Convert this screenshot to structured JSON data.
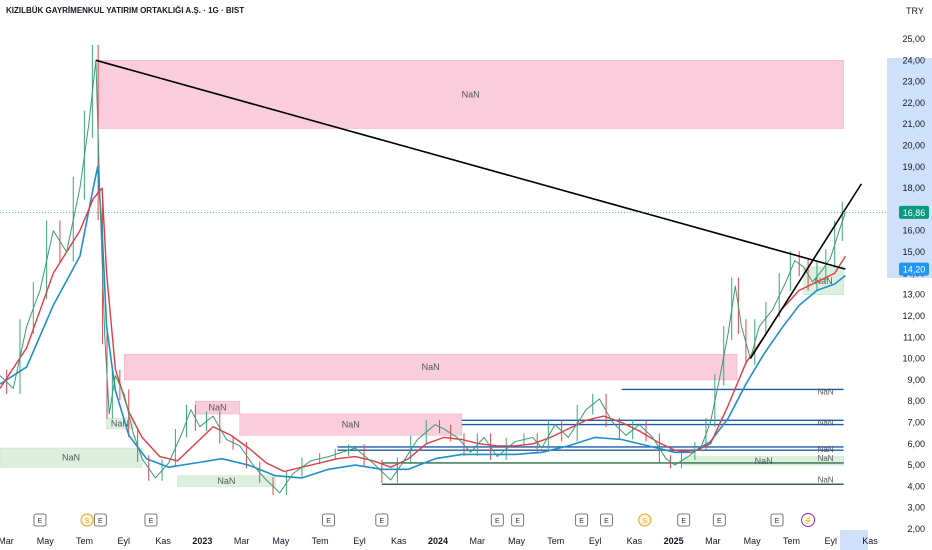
{
  "header": {
    "title": "KIZILBÜK GAYRİMENKUL YATIRIM ORTAKLIĞI A.Ş. · 1G · BIST",
    "currency": "TRY"
  },
  "colors": {
    "supply": "#f9c5d5",
    "demand": "#d8eedb",
    "blue_line": "#1e5aa8",
    "dark_green_line": "#2b6b46",
    "red_ma": "#e03b46",
    "blue_ma": "#1f8fc9",
    "trendline": "#000000",
    "price_badge": "#089981",
    "level_badge": "#2196f3",
    "axis_highlight": "#cfe0fa"
  },
  "chart_data": {
    "type": "line",
    "price_axis": {
      "ticks": [
        "25,00",
        "24,00",
        "23,00",
        "22,00",
        "21,00",
        "20,00",
        "19,00",
        "18,00",
        "17,00",
        "16,00",
        "15,00",
        "14,00",
        "13,00",
        "12,00",
        "11,00",
        "10,00",
        "9,00",
        "8,00",
        "7,00",
        "6,00",
        "5,00",
        "4,00",
        "3,00",
        "2,00"
      ],
      "ylim": [
        2.0,
        25.0
      ],
      "badges": [
        {
          "name": "last-price",
          "label": "16,86",
          "value": 16.86
        },
        {
          "name": "level",
          "label": "14,20",
          "value": 14.2
        }
      ]
    },
    "time_axis": {
      "ticks": [
        "Mar",
        "May",
        "Tem",
        "Eyl",
        "Kas",
        "2023",
        "Mar",
        "May",
        "Tem",
        "Eyl",
        "Kas",
        "2024",
        "Mar",
        "May",
        "Tem",
        "Eyl",
        "Kas",
        "2025",
        "Mar",
        "May",
        "Tem",
        "Eyl",
        "Kas"
      ],
      "bold": [
        "2023",
        "2024",
        "2025"
      ]
    },
    "zones": [
      {
        "kind": "supply",
        "label": "NaN",
        "top": 24.0,
        "bottom": 20.8,
        "start": 0.11,
        "end": 0.95
      },
      {
        "kind": "supply",
        "label": "NaN",
        "top": 10.2,
        "bottom": 9.0,
        "start": 0.14,
        "end": 0.83
      },
      {
        "kind": "supply",
        "label": "NaN",
        "top": 8.0,
        "bottom": 7.4,
        "start": 0.22,
        "end": 0.27
      },
      {
        "kind": "supply",
        "label": "NaN",
        "top": 7.4,
        "bottom": 6.4,
        "start": 0.27,
        "end": 0.52
      },
      {
        "kind": "demand",
        "label": "NaN",
        "top": 5.8,
        "bottom": 4.9,
        "start": 0.0,
        "end": 0.16
      },
      {
        "kind": "demand",
        "label": "NaN",
        "top": 7.2,
        "bottom": 6.7,
        "start": 0.12,
        "end": 0.15
      },
      {
        "kind": "demand",
        "label": "NaN",
        "top": 4.5,
        "bottom": 4.0,
        "start": 0.2,
        "end": 0.31
      },
      {
        "kind": "demand",
        "label": "NaN",
        "top": 5.4,
        "bottom": 5.0,
        "start": 0.77,
        "end": 0.95
      },
      {
        "kind": "demand",
        "label": "NaN",
        "top": 14.3,
        "bottom": 13.0,
        "start": 0.905,
        "end": 0.95
      }
    ],
    "hlines": [
      {
        "color": "blue",
        "value": 8.55,
        "start": 0.7,
        "end": 0.95,
        "label": "NaN"
      },
      {
        "color": "blue",
        "value": 7.1,
        "start": 0.52,
        "end": 0.95,
        "label": "NaN"
      },
      {
        "color": "blue",
        "value": 6.9,
        "start": 0.52,
        "end": 0.95,
        "label": ""
      },
      {
        "color": "blue",
        "value": 5.85,
        "start": 0.38,
        "end": 0.95,
        "label": "NaN"
      },
      {
        "color": "blue",
        "value": 5.7,
        "start": 0.38,
        "end": 0.95,
        "label": ""
      },
      {
        "color": "green",
        "value": 5.1,
        "start": 0.43,
        "end": 0.95,
        "label": "NaN"
      },
      {
        "color": "green",
        "value": 4.1,
        "start": 0.43,
        "end": 0.95,
        "label": "NaN"
      }
    ],
    "zone_labels_extra": [
      "NaN",
      "NaN",
      "NaN",
      "NaN"
    ],
    "price_series": [
      [
        0.0,
        9.2
      ],
      [
        0.015,
        8.6
      ],
      [
        0.03,
        11.5
      ],
      [
        0.045,
        13.2
      ],
      [
        0.06,
        16.0
      ],
      [
        0.075,
        15.0
      ],
      [
        0.09,
        18.0
      ],
      [
        0.1,
        21.0
      ],
      [
        0.108,
        24.0
      ],
      [
        0.113,
        17.0
      ],
      [
        0.118,
        11.0
      ],
      [
        0.123,
        7.4
      ],
      [
        0.13,
        9.2
      ],
      [
        0.14,
        8.3
      ],
      [
        0.15,
        6.5
      ],
      [
        0.16,
        5.3
      ],
      [
        0.175,
        4.4
      ],
      [
        0.19,
        5.1
      ],
      [
        0.205,
        6.5
      ],
      [
        0.215,
        7.6
      ],
      [
        0.225,
        6.8
      ],
      [
        0.24,
        7.3
      ],
      [
        0.255,
        6.2
      ],
      [
        0.27,
        5.9
      ],
      [
        0.285,
        5.0
      ],
      [
        0.3,
        4.3
      ],
      [
        0.315,
        3.7
      ],
      [
        0.33,
        4.6
      ],
      [
        0.35,
        5.2
      ],
      [
        0.37,
        5.4
      ],
      [
        0.385,
        5.6
      ],
      [
        0.4,
        5.8
      ],
      [
        0.42,
        5.1
      ],
      [
        0.44,
        4.3
      ],
      [
        0.455,
        5.2
      ],
      [
        0.47,
        6.2
      ],
      [
        0.49,
        6.9
      ],
      [
        0.5,
        6.7
      ],
      [
        0.515,
        6.3
      ],
      [
        0.53,
        5.6
      ],
      [
        0.545,
        6.3
      ],
      [
        0.56,
        5.4
      ],
      [
        0.58,
        6.1
      ],
      [
        0.6,
        6.3
      ],
      [
        0.61,
        5.8
      ],
      [
        0.625,
        6.9
      ],
      [
        0.64,
        6.3
      ],
      [
        0.66,
        7.6
      ],
      [
        0.675,
        8.1
      ],
      [
        0.69,
        7.0
      ],
      [
        0.705,
        6.4
      ],
      [
        0.72,
        6.9
      ],
      [
        0.735,
        6.3
      ],
      [
        0.75,
        5.3
      ],
      [
        0.76,
        5.0
      ],
      [
        0.775,
        5.4
      ],
      [
        0.79,
        5.9
      ],
      [
        0.8,
        7.0
      ],
      [
        0.81,
        9.0
      ],
      [
        0.82,
        11.2
      ],
      [
        0.828,
        13.4
      ],
      [
        0.835,
        11.5
      ],
      [
        0.845,
        10.0
      ],
      [
        0.855,
        11.5
      ],
      [
        0.87,
        12.3
      ],
      [
        0.885,
        13.6
      ],
      [
        0.895,
        14.6
      ],
      [
        0.905,
        14.3
      ],
      [
        0.915,
        13.6
      ],
      [
        0.925,
        14.1
      ],
      [
        0.935,
        14.7
      ],
      [
        0.945,
        16.0
      ],
      [
        0.952,
        16.86
      ]
    ],
    "ma_red": [
      [
        0.0,
        8.6
      ],
      [
        0.03,
        10.5
      ],
      [
        0.06,
        14.0
      ],
      [
        0.09,
        16.0
      ],
      [
        0.105,
        17.5
      ],
      [
        0.115,
        18.0
      ],
      [
        0.12,
        14.0
      ],
      [
        0.13,
        9.5
      ],
      [
        0.145,
        7.5
      ],
      [
        0.16,
        6.3
      ],
      [
        0.18,
        5.4
      ],
      [
        0.2,
        5.2
      ],
      [
        0.22,
        6.0
      ],
      [
        0.24,
        6.8
      ],
      [
        0.26,
        6.4
      ],
      [
        0.28,
        5.8
      ],
      [
        0.3,
        5.1
      ],
      [
        0.32,
        4.7
      ],
      [
        0.34,
        4.9
      ],
      [
        0.36,
        5.1
      ],
      [
        0.38,
        5.3
      ],
      [
        0.4,
        5.4
      ],
      [
        0.42,
        5.2
      ],
      [
        0.44,
        4.9
      ],
      [
        0.46,
        5.3
      ],
      [
        0.48,
        6.0
      ],
      [
        0.5,
        6.3
      ],
      [
        0.52,
        6.2
      ],
      [
        0.54,
        6.0
      ],
      [
        0.56,
        5.9
      ],
      [
        0.58,
        5.9
      ],
      [
        0.6,
        6.0
      ],
      [
        0.62,
        6.3
      ],
      [
        0.64,
        6.7
      ],
      [
        0.66,
        7.1
      ],
      [
        0.68,
        7.3
      ],
      [
        0.7,
        7.0
      ],
      [
        0.72,
        6.6
      ],
      [
        0.74,
        6.1
      ],
      [
        0.76,
        5.7
      ],
      [
        0.78,
        5.6
      ],
      [
        0.8,
        6.0
      ],
      [
        0.82,
        7.8
      ],
      [
        0.84,
        9.8
      ],
      [
        0.86,
        11.0
      ],
      [
        0.88,
        12.3
      ],
      [
        0.9,
        13.2
      ],
      [
        0.92,
        13.6
      ],
      [
        0.94,
        14.0
      ],
      [
        0.952,
        14.8
      ]
    ],
    "ma_blue": [
      [
        0.0,
        8.8
      ],
      [
        0.03,
        9.6
      ],
      [
        0.06,
        12.5
      ],
      [
        0.09,
        14.8
      ],
      [
        0.105,
        18.0
      ],
      [
        0.11,
        19.0
      ],
      [
        0.115,
        16.0
      ],
      [
        0.12,
        11.5
      ],
      [
        0.13,
        8.5
      ],
      [
        0.145,
        6.4
      ],
      [
        0.165,
        5.3
      ],
      [
        0.19,
        4.9
      ],
      [
        0.22,
        5.1
      ],
      [
        0.25,
        5.3
      ],
      [
        0.28,
        5.0
      ],
      [
        0.31,
        4.5
      ],
      [
        0.34,
        4.4
      ],
      [
        0.37,
        4.8
      ],
      [
        0.4,
        5.0
      ],
      [
        0.43,
        4.8
      ],
      [
        0.46,
        4.8
      ],
      [
        0.49,
        5.3
      ],
      [
        0.52,
        5.5
      ],
      [
        0.55,
        5.5
      ],
      [
        0.58,
        5.5
      ],
      [
        0.61,
        5.6
      ],
      [
        0.64,
        5.9
      ],
      [
        0.67,
        6.3
      ],
      [
        0.7,
        6.2
      ],
      [
        0.73,
        5.9
      ],
      [
        0.76,
        5.6
      ],
      [
        0.78,
        5.6
      ],
      [
        0.8,
        6.1
      ],
      [
        0.82,
        7.2
      ],
      [
        0.84,
        8.8
      ],
      [
        0.86,
        10.2
      ],
      [
        0.88,
        11.4
      ],
      [
        0.9,
        12.5
      ],
      [
        0.92,
        13.2
      ],
      [
        0.94,
        13.5
      ],
      [
        0.952,
        13.9
      ]
    ],
    "trendlines": [
      {
        "from": [
          0.108,
          24.0
        ],
        "to": [
          0.952,
          14.2
        ]
      },
      {
        "from": [
          0.845,
          10.0
        ],
        "to": [
          0.97,
          18.2
        ]
      }
    ]
  },
  "event_markers": [
    {
      "icon": "earnings-icon",
      "glyph": "E",
      "pos": 0.045
    },
    {
      "icon": "dividend-icon",
      "glyph": "S",
      "pos": 0.098
    },
    {
      "icon": "earnings-icon",
      "glyph": "E",
      "pos": 0.113
    },
    {
      "icon": "earnings-icon",
      "glyph": "E",
      "pos": 0.17
    },
    {
      "icon": "earnings-icon",
      "glyph": "E",
      "pos": 0.37
    },
    {
      "icon": "earnings-icon",
      "glyph": "E",
      "pos": 0.43
    },
    {
      "icon": "earnings-icon",
      "glyph": "E",
      "pos": 0.56
    },
    {
      "icon": "earnings-icon",
      "glyph": "E",
      "pos": 0.583
    },
    {
      "icon": "earnings-icon",
      "glyph": "E",
      "pos": 0.655
    },
    {
      "icon": "earnings-icon",
      "glyph": "E",
      "pos": 0.683
    },
    {
      "icon": "dividend-icon",
      "glyph": "S",
      "pos": 0.726
    },
    {
      "icon": "earnings-icon",
      "glyph": "E",
      "pos": 0.77
    },
    {
      "icon": "earnings-icon",
      "glyph": "E",
      "pos": 0.81
    },
    {
      "icon": "earnings-icon",
      "glyph": "E",
      "pos": 0.875
    },
    {
      "icon": "flash-icon",
      "glyph": "⚡",
      "pos": 0.91
    }
  ]
}
